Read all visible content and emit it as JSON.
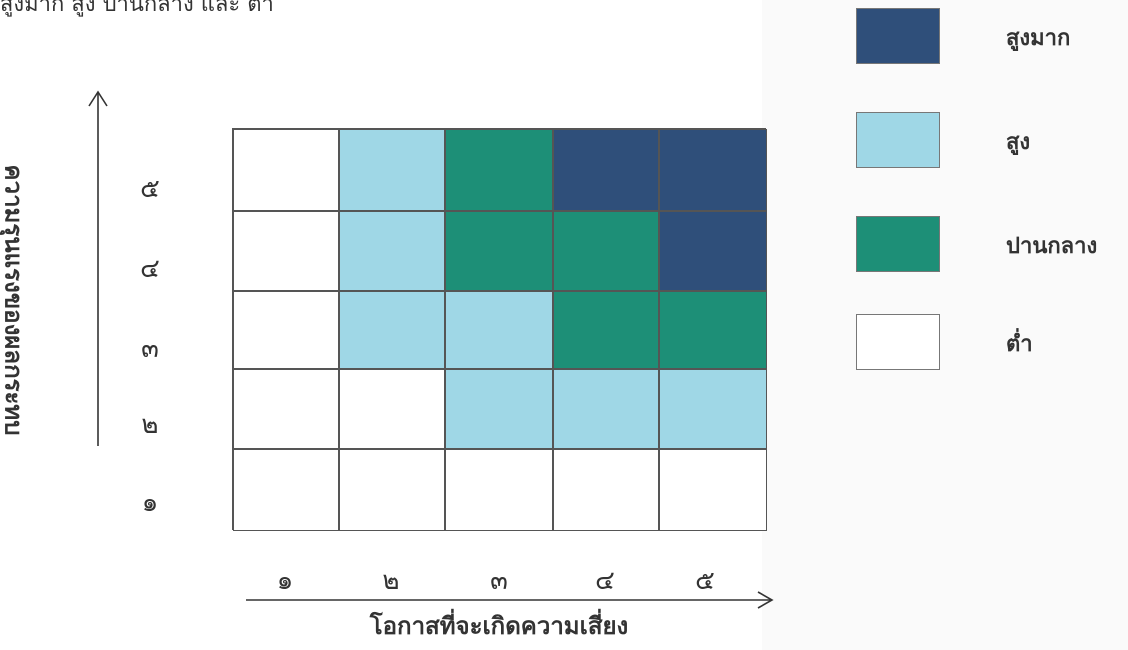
{
  "caption": "สูงมาก สูง ปานกลาง และ ต่ำ",
  "axes": {
    "y_title": "ความรุนแรงของผลกระทบ",
    "x_title": "โอกาสที่จะเกิดความเสี่ยง",
    "y_ticks": [
      "๕",
      "๔",
      "๓",
      "๒",
      "๑"
    ],
    "x_ticks": [
      "๑",
      "๒",
      "๓",
      "๔",
      "๕"
    ]
  },
  "matrix": {
    "rows": [
      [
        "low",
        "high",
        "medium",
        "very-high",
        "very-high"
      ],
      [
        "low",
        "high",
        "medium",
        "medium",
        "very-high"
      ],
      [
        "low",
        "high",
        "high",
        "medium",
        "medium"
      ],
      [
        "low",
        "low",
        "high",
        "high",
        "high"
      ],
      [
        "low",
        "low",
        "low",
        "low",
        "low"
      ]
    ]
  },
  "legend": {
    "items": [
      {
        "key": "very-high",
        "label": "สูงมาก",
        "color": "#2f4f7a"
      },
      {
        "key": "high",
        "label": "สูง",
        "color": "#9fd7e6"
      },
      {
        "key": "medium",
        "label": "ปานกลาง",
        "color": "#1d8f77"
      },
      {
        "key": "low",
        "label": "ต่ำ",
        "color": "#ffffff"
      }
    ]
  }
}
